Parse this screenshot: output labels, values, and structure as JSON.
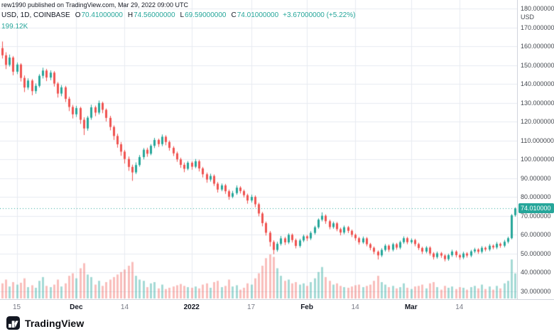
{
  "header": {
    "attribution": "rew1990 published on TradingView.com, Mar 29, 2022 09:00 UTC",
    "symbol": "USD, 1D, COINBASE",
    "ohlc": [
      {
        "label": "O",
        "value": "70.41000000"
      },
      {
        "label": "H",
        "value": "74.56000000"
      },
      {
        "label": "L",
        "value": "69.59000000"
      },
      {
        "label": "C",
        "value": "74.01000000"
      }
    ],
    "change": "+3.67000000 (+5.22%)",
    "volume": "199.12K"
  },
  "footer": {
    "brand": "TradingView"
  },
  "price_line": {
    "value": 74.01,
    "label": "74.010000"
  },
  "colors": {
    "up": "#26a69a",
    "down": "#ef5350",
    "vol_up": "rgba(38,166,154,0.42)",
    "vol_down": "rgba(239,83,80,0.38)",
    "grid": "#e7ebf1",
    "axis_border": "#d1d4dc",
    "text_dark": "#131722",
    "text_grey": "#787b86",
    "accent": "#26a69a"
  },
  "chart_data": {
    "type": "candlestick",
    "symbol_visible": "USD, 1D, COINBASE",
    "timeframe": "1D",
    "y_unit": "USD",
    "ylim": [
      30,
      180
    ],
    "yticks": [
      180,
      170,
      160,
      150,
      140,
      130,
      120,
      110,
      100,
      90,
      80,
      70,
      60,
      50,
      40,
      30
    ],
    "xticks": [
      {
        "label": "15",
        "index": 4,
        "major": false
      },
      {
        "label": "Dec",
        "index": 20,
        "major": true
      },
      {
        "label": "14",
        "index": 33,
        "major": false
      },
      {
        "label": "2022",
        "index": 51,
        "major": true
      },
      {
        "label": "17",
        "index": 67,
        "major": false
      },
      {
        "label": "Feb",
        "index": 82,
        "major": true
      },
      {
        "label": "14",
        "index": 95,
        "major": false
      },
      {
        "label": "Mar",
        "index": 110,
        "major": true
      },
      {
        "label": "14",
        "index": 123,
        "major": false
      }
    ],
    "price_line_value": 74.01,
    "last": {
      "open": 70.41,
      "high": 74.56,
      "low": 69.59,
      "close": 74.01,
      "change": 3.67,
      "change_pct": 5.22,
      "volume_k": 199.12
    },
    "volume_unit": "K",
    "candles": [
      [
        159,
        162.5,
        153.5,
        155.2,
        120
      ],
      [
        155.2,
        156.8,
        147.9,
        150.1,
        150
      ],
      [
        150.1,
        155.6,
        149.2,
        154,
        95
      ],
      [
        154,
        154.8,
        144.6,
        146.5,
        130
      ],
      [
        146.5,
        151.4,
        145.2,
        150.3,
        110
      ],
      [
        150.3,
        151,
        141.3,
        143.2,
        125
      ],
      [
        143.2,
        144.5,
        135.7,
        138.1,
        160
      ],
      [
        138.1,
        143,
        136.9,
        141.8,
        90
      ],
      [
        141.8,
        142.6,
        134,
        136.2,
        105
      ],
      [
        136.2,
        140.3,
        134.8,
        139,
        85
      ],
      [
        139,
        145.2,
        138.1,
        144.3,
        140
      ],
      [
        144.3,
        148.6,
        142.9,
        147.1,
        170
      ],
      [
        147.1,
        148,
        141.5,
        143.4,
        100
      ],
      [
        143.4,
        147.2,
        142,
        146,
        90
      ],
      [
        146,
        146.8,
        138.6,
        140.2,
        110
      ],
      [
        140.2,
        141,
        132.8,
        134.9,
        150
      ],
      [
        134.9,
        139.4,
        133.5,
        138.2,
        95
      ],
      [
        138.2,
        139,
        130.4,
        132.1,
        120
      ],
      [
        132.1,
        133.2,
        125.6,
        127.8,
        180
      ],
      [
        127.8,
        128.9,
        121.7,
        123.9,
        200
      ],
      [
        123.9,
        128.4,
        122.5,
        127.2,
        160
      ],
      [
        127.2,
        127.9,
        118.8,
        121,
        240
      ],
      [
        121,
        122.3,
        112.9,
        116.4,
        280
      ],
      [
        116.4,
        123,
        115.2,
        122.1,
        190
      ],
      [
        122.1,
        129,
        121,
        127.6,
        170
      ],
      [
        127.6,
        128.5,
        122.9,
        124.8,
        110
      ],
      [
        124.8,
        131.2,
        123.8,
        129.9,
        140
      ],
      [
        129.9,
        130.6,
        124.5,
        126.3,
        100
      ],
      [
        126.3,
        127,
        120.1,
        122,
        130
      ],
      [
        122,
        123.1,
        115.4,
        117.2,
        150
      ],
      [
        117.2,
        118,
        110.3,
        112.4,
        170
      ],
      [
        112.4,
        113.6,
        106.2,
        108,
        190
      ],
      [
        108,
        109.2,
        101.9,
        104.1,
        210
      ],
      [
        104.1,
        105,
        97.8,
        100.2,
        230
      ],
      [
        100.2,
        101.5,
        93.9,
        96,
        260
      ],
      [
        96,
        97.2,
        88.6,
        93.1,
        290
      ],
      [
        93.1,
        98.4,
        92.2,
        97,
        180
      ],
      [
        97,
        102.3,
        96.1,
        101.2,
        150
      ],
      [
        101.2,
        106,
        100,
        105.1,
        140
      ],
      [
        105.1,
        106.2,
        101.4,
        103,
        90
      ],
      [
        103,
        108.1,
        102.2,
        107.2,
        120
      ],
      [
        107.2,
        111.4,
        106,
        110.3,
        130
      ],
      [
        110.3,
        111,
        106.6,
        108.1,
        80
      ],
      [
        108.1,
        113.2,
        107,
        112,
        110
      ],
      [
        112,
        112.8,
        107.5,
        109.2,
        75
      ],
      [
        109.2,
        110,
        104.6,
        106.1,
        85
      ],
      [
        106.1,
        107,
        101.8,
        103.2,
        95
      ],
      [
        103.2,
        104.1,
        98.7,
        100,
        105
      ],
      [
        100,
        100.9,
        95.5,
        97.1,
        115
      ],
      [
        97.1,
        98.3,
        93.2,
        95,
        100
      ],
      [
        95,
        99.1,
        94.2,
        98.2,
        90
      ],
      [
        98.2,
        99,
        94.5,
        96.1,
        85
      ],
      [
        96.1,
        100.2,
        95.3,
        99,
        95
      ],
      [
        99,
        99.8,
        93.6,
        95.2,
        80
      ],
      [
        95.2,
        96,
        90.4,
        92.1,
        110
      ],
      [
        92.1,
        93,
        87.6,
        89.3,
        120
      ],
      [
        89.3,
        92.4,
        88.2,
        91.2,
        85
      ],
      [
        91.2,
        92,
        85.9,
        87.1,
        130
      ],
      [
        87.1,
        88,
        82.4,
        84,
        140
      ],
      [
        84,
        87.2,
        83.1,
        86.2,
        90
      ],
      [
        86.2,
        87,
        81.7,
        83.1,
        100
      ],
      [
        83.1,
        84,
        78.6,
        80.2,
        150
      ],
      [
        80.2,
        83.3,
        79.4,
        82.1,
        95
      ],
      [
        82.1,
        86.2,
        81.2,
        85,
        105
      ],
      [
        85,
        85.8,
        81.9,
        83.2,
        70
      ],
      [
        83.2,
        84,
        79.8,
        81,
        85
      ],
      [
        81,
        81.8,
        76.5,
        78.2,
        120
      ],
      [
        78.2,
        81.3,
        77.1,
        80.1,
        110
      ],
      [
        80.1,
        80.9,
        74.6,
        76.2,
        160
      ],
      [
        76.2,
        77,
        69.8,
        71.3,
        200
      ],
      [
        71.3,
        72.1,
        64.5,
        66.2,
        260
      ],
      [
        66.2,
        67,
        59.6,
        61.1,
        320
      ],
      [
        61.1,
        62,
        53.8,
        56.2,
        350
      ],
      [
        56.2,
        57.1,
        49.7,
        52,
        330
      ],
      [
        52,
        56.3,
        51,
        55.2,
        240
      ],
      [
        55.2,
        59.4,
        54.3,
        58.1,
        180
      ],
      [
        58.1,
        58.9,
        54.6,
        56,
        140
      ],
      [
        56,
        60.8,
        55.1,
        60,
        150
      ],
      [
        60,
        60.7,
        55.9,
        57.2,
        120
      ],
      [
        57.2,
        58,
        52.8,
        54.1,
        130
      ],
      [
        54.1,
        57.9,
        53.2,
        57,
        110
      ],
      [
        57,
        60.1,
        56.1,
        59.2,
        120
      ],
      [
        59.2,
        59.9,
        56.7,
        58.1,
        100
      ],
      [
        58.1,
        61.9,
        57.2,
        61,
        130
      ],
      [
        61,
        64.8,
        60.1,
        64,
        160
      ],
      [
        64,
        68.7,
        63.2,
        68,
        210
      ],
      [
        68,
        71.9,
        67.1,
        70.1,
        250
      ],
      [
        70.1,
        70.8,
        65.8,
        67.2,
        170
      ],
      [
        67.2,
        68,
        62.9,
        64.1,
        140
      ],
      [
        64.1,
        67,
        63.2,
        66.1,
        110
      ],
      [
        66.1,
        66.8,
        61.9,
        63,
        120
      ],
      [
        63,
        63.8,
        59.7,
        61.2,
        100
      ],
      [
        61.2,
        64.9,
        60.3,
        64,
        90
      ],
      [
        64,
        64.7,
        60.9,
        62.1,
        85
      ],
      [
        62.1,
        62.8,
        58.8,
        60,
        95
      ],
      [
        60,
        60.7,
        56.9,
        58.2,
        105
      ],
      [
        58.2,
        58.9,
        54.8,
        56,
        110
      ],
      [
        56,
        59.1,
        55.2,
        58.1,
        90
      ],
      [
        58.1,
        58.8,
        53.9,
        55,
        100
      ],
      [
        55,
        55.7,
        51.8,
        53.1,
        110
      ],
      [
        53.1,
        53.8,
        49.7,
        51,
        140
      ],
      [
        51,
        51.7,
        46.9,
        49.1,
        180
      ],
      [
        49.1,
        52.9,
        48.2,
        52,
        130
      ],
      [
        52,
        55.1,
        51.1,
        54.2,
        110
      ],
      [
        54.2,
        54.9,
        50.9,
        52.1,
        90
      ],
      [
        52.1,
        55.8,
        51.2,
        55,
        100
      ],
      [
        55,
        55.7,
        52.1,
        53.2,
        80
      ],
      [
        53.2,
        56.9,
        52.3,
        56.1,
        90
      ],
      [
        56.1,
        59.2,
        55.2,
        58.2,
        120
      ],
      [
        58.2,
        58.9,
        55,
        56.1,
        85
      ],
      [
        56.1,
        58.1,
        55.2,
        57.2,
        75
      ],
      [
        57.2,
        57.9,
        53.9,
        55.1,
        95
      ],
      [
        55.1,
        55.8,
        51.9,
        53,
        100
      ],
      [
        53,
        53.7,
        49.8,
        51.1,
        110
      ],
      [
        51.1,
        54,
        50.2,
        53.2,
        80
      ],
      [
        53.2,
        53.9,
        49,
        50.1,
        120
      ],
      [
        50.1,
        50.8,
        46.9,
        48.2,
        130
      ],
      [
        48.2,
        51.1,
        47.3,
        50.2,
        90
      ],
      [
        50.2,
        50.9,
        47.8,
        49,
        70
      ],
      [
        49,
        49.7,
        45.9,
        47.1,
        100
      ],
      [
        47.1,
        50,
        46.2,
        49.2,
        85
      ],
      [
        49.2,
        52.1,
        48.3,
        51.1,
        95
      ],
      [
        51.1,
        51.8,
        48,
        49.2,
        75
      ],
      [
        49.2,
        49.9,
        46.8,
        48,
        90
      ],
      [
        48,
        51,
        47.1,
        50.1,
        85
      ],
      [
        50.1,
        50.8,
        47.9,
        49,
        70
      ],
      [
        49,
        52,
        48.1,
        51.2,
        90
      ],
      [
        51.2,
        53.1,
        50.3,
        52.2,
        100
      ],
      [
        52.2,
        52.9,
        49.9,
        51,
        80
      ],
      [
        51,
        54,
        50.1,
        53.1,
        110
      ],
      [
        53.1,
        53.8,
        51.2,
        52.2,
        75
      ],
      [
        52.2,
        55.1,
        51.3,
        54.2,
        95
      ],
      [
        54.2,
        54.9,
        52.3,
        53.3,
        70
      ],
      [
        53.3,
        56.2,
        52.4,
        55.2,
        100
      ],
      [
        55.2,
        55.9,
        53.1,
        54.2,
        80
      ],
      [
        54.2,
        57.3,
        53.3,
        56.3,
        120
      ],
      [
        56.3,
        59,
        55.4,
        58.2,
        140
      ],
      [
        58.2,
        71,
        57.6,
        70.34,
        310
      ],
      [
        70.41,
        74.56,
        69.59,
        74.01,
        199.12
      ]
    ]
  }
}
